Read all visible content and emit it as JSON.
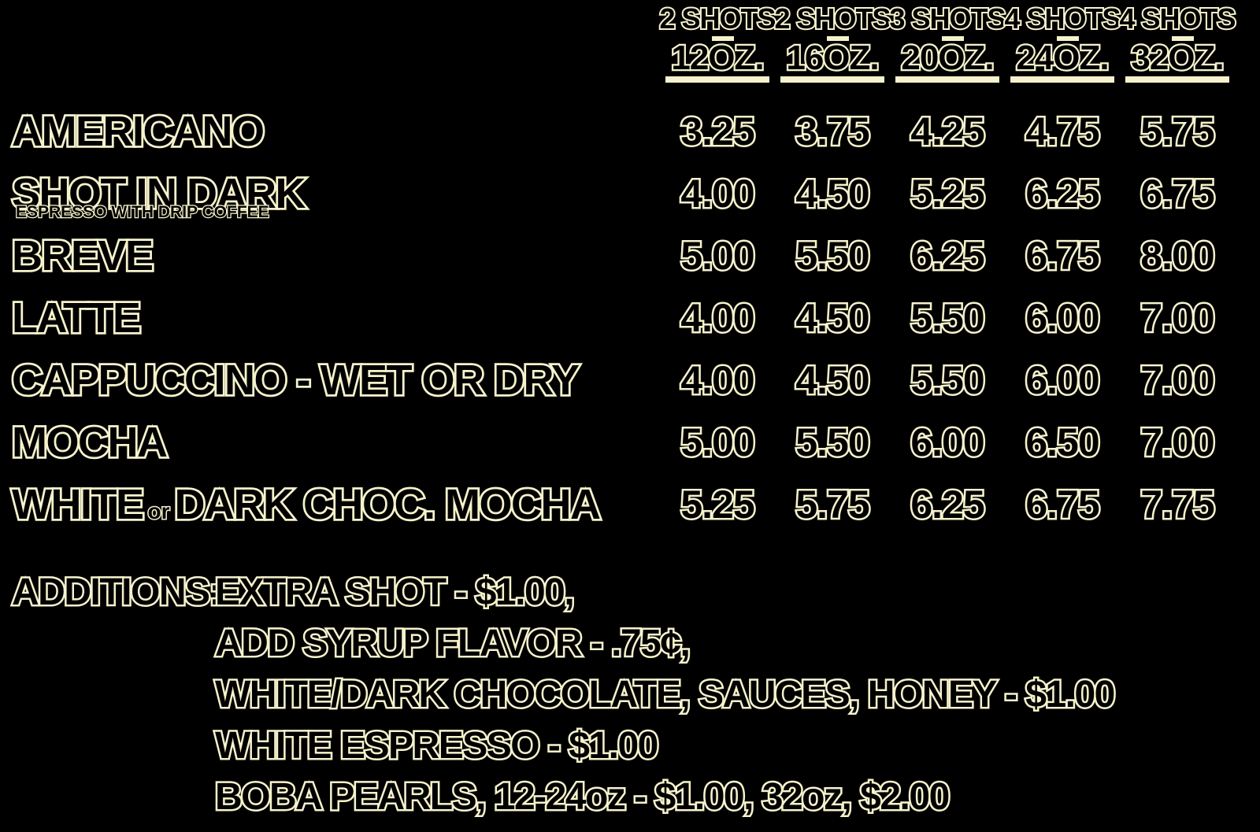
{
  "menu": {
    "colors": {
      "background": "#000000",
      "outline": "#f6f2cc"
    },
    "columns": [
      {
        "shots": "2 SHOTS",
        "size": "12OZ."
      },
      {
        "shots": "2 SHOTS",
        "size": "16OZ."
      },
      {
        "shots": "3 SHOTS",
        "size": "20OZ."
      },
      {
        "shots": "4 SHOTS",
        "size": "24OZ."
      },
      {
        "shots": "4 SHOTS",
        "size": "32OZ."
      }
    ],
    "items": [
      {
        "name": "AMERICANO",
        "prices": [
          "3.25",
          "3.75",
          "4.25",
          "4.75",
          "5.75"
        ]
      },
      {
        "name": "SHOT IN DARK",
        "subtitle": "ESPRESSO WITH DRIP COFFEE",
        "prices": [
          "4.00",
          "4.50",
          "5.25",
          "6.25",
          "6.75"
        ]
      },
      {
        "name": "BREVE",
        "prices": [
          "5.00",
          "5.50",
          "6.25",
          "6.75",
          "8.00"
        ]
      },
      {
        "name": "LATTE",
        "prices": [
          "4.00",
          "4.50",
          "5.50",
          "6.00",
          "7.00"
        ]
      },
      {
        "name": "CAPPUCCINO - WET OR DRY",
        "prices": [
          "4.00",
          "4.50",
          "5.50",
          "6.00",
          "7.00"
        ]
      },
      {
        "name": "MOCHA",
        "prices": [
          "5.00",
          "5.50",
          "6.00",
          "6.50",
          "7.00"
        ]
      },
      {
        "name_start": "WHITE",
        "name_conj": "or",
        "name_end": "DARK CHOC. MOCHA",
        "prices": [
          "5.25",
          "5.75",
          "6.25",
          "6.75",
          "7.75"
        ]
      }
    ],
    "additions": {
      "label": "ADDITIONS:",
      "lines": [
        "EXTRA SHOT - $1.00,",
        "ADD SYRUP FLAVOR - .75¢,",
        "WHITE/DARK CHOCOLATE, SAUCES, HONEY - $1.00",
        "WHITE ESPRESSO - $1.00",
        "BOBA PEARLS, 12-24oz - $1.00, 32oz, $2.00"
      ]
    }
  }
}
